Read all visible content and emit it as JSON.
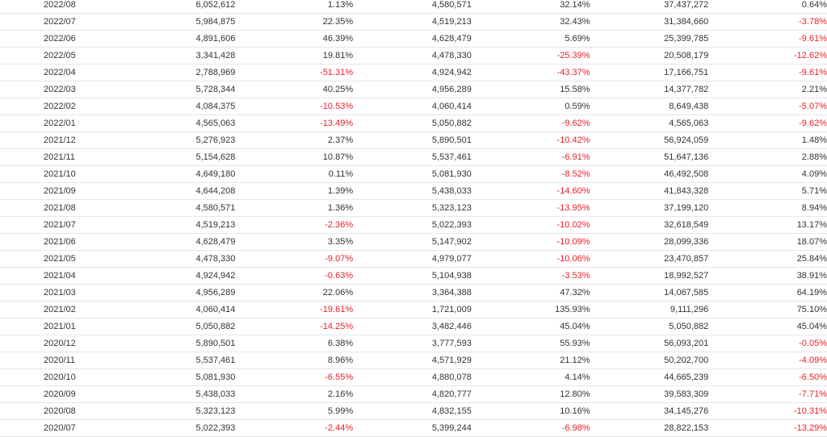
{
  "colors": {
    "negative": "#e8202a",
    "text": "#333333",
    "row_border": "#e6e6e6"
  },
  "rows": [
    {
      "month": "2022/08",
      "v1": "6,052,612",
      "p1": "1.13%",
      "v2": "4,580,571",
      "p2": "32.14%",
      "v3": "37,437,272",
      "p3": "0.64%"
    },
    {
      "month": "2022/07",
      "v1": "5,984,875",
      "p1": "22.35%",
      "v2": "4,519,213",
      "p2": "32.43%",
      "v3": "31,384,660",
      "p3": "-3.78%"
    },
    {
      "month": "2022/06",
      "v1": "4,891,606",
      "p1": "46.39%",
      "v2": "4,628,479",
      "p2": "5.69%",
      "v3": "25,399,785",
      "p3": "-9.61%"
    },
    {
      "month": "2022/05",
      "v1": "3,341,428",
      "p1": "19.81%",
      "v2": "4,478,330",
      "p2": "-25.39%",
      "v3": "20,508,179",
      "p3": "-12.62%"
    },
    {
      "month": "2022/04",
      "v1": "2,788,969",
      "p1": "-51.31%",
      "v2": "4,924,942",
      "p2": "-43.37%",
      "v3": "17,166,751",
      "p3": "-9.61%"
    },
    {
      "month": "2022/03",
      "v1": "5,728,344",
      "p1": "40.25%",
      "v2": "4,956,289",
      "p2": "15.58%",
      "v3": "14,377,782",
      "p3": "2.21%"
    },
    {
      "month": "2022/02",
      "v1": "4,084,375",
      "p1": "-10.53%",
      "v2": "4,060,414",
      "p2": "0.59%",
      "v3": "8,649,438",
      "p3": "-5.07%"
    },
    {
      "month": "2022/01",
      "v1": "4,565,063",
      "p1": "-13.49%",
      "v2": "5,050,882",
      "p2": "-9.62%",
      "v3": "4,565,063",
      "p3": "-9.62%"
    },
    {
      "month": "2021/12",
      "v1": "5,276,923",
      "p1": "2.37%",
      "v2": "5,890,501",
      "p2": "-10.42%",
      "v3": "56,924,059",
      "p3": "1.48%"
    },
    {
      "month": "2021/11",
      "v1": "5,154,628",
      "p1": "10.87%",
      "v2": "5,537,461",
      "p2": "-6.91%",
      "v3": "51,647,136",
      "p3": "2.88%"
    },
    {
      "month": "2021/10",
      "v1": "4,649,180",
      "p1": "0.11%",
      "v2": "5,081,930",
      "p2": "-8.52%",
      "v3": "46,492,508",
      "p3": "4.09%"
    },
    {
      "month": "2021/09",
      "v1": "4,644,208",
      "p1": "1.39%",
      "v2": "5,438,033",
      "p2": "-14.60%",
      "v3": "41,843,328",
      "p3": "5.71%"
    },
    {
      "month": "2021/08",
      "v1": "4,580,571",
      "p1": "1.36%",
      "v2": "5,323,123",
      "p2": "-13.95%",
      "v3": "37,199,120",
      "p3": "8.94%"
    },
    {
      "month": "2021/07",
      "v1": "4,519,213",
      "p1": "-2.36%",
      "v2": "5,022,393",
      "p2": "-10.02%",
      "v3": "32,618,549",
      "p3": "13.17%"
    },
    {
      "month": "2021/06",
      "v1": "4,628,479",
      "p1": "3.35%",
      "v2": "5,147,902",
      "p2": "-10.09%",
      "v3": "28,099,336",
      "p3": "18.07%"
    },
    {
      "month": "2021/05",
      "v1": "4,478,330",
      "p1": "-9.07%",
      "v2": "4,979,077",
      "p2": "-10.06%",
      "v3": "23,470,857",
      "p3": "25.84%"
    },
    {
      "month": "2021/04",
      "v1": "4,924,942",
      "p1": "-0.63%",
      "v2": "5,104,938",
      "p2": "-3.53%",
      "v3": "18,992,527",
      "p3": "38.91%"
    },
    {
      "month": "2021/03",
      "v1": "4,956,289",
      "p1": "22.06%",
      "v2": "3,364,388",
      "p2": "47.32%",
      "v3": "14,067,585",
      "p3": "64.19%"
    },
    {
      "month": "2021/02",
      "v1": "4,060,414",
      "p1": "-19.61%",
      "v2": "1,721,009",
      "p2": "135.93%",
      "v3": "9,111,296",
      "p3": "75.10%"
    },
    {
      "month": "2021/01",
      "v1": "5,050,882",
      "p1": "-14.25%",
      "v2": "3,482,446",
      "p2": "45.04%",
      "v3": "5,050,882",
      "p3": "45.04%"
    },
    {
      "month": "2020/12",
      "v1": "5,890,501",
      "p1": "6.38%",
      "v2": "3,777,593",
      "p2": "55.93%",
      "v3": "56,093,201",
      "p3": "-0.05%"
    },
    {
      "month": "2020/11",
      "v1": "5,537,461",
      "p1": "8.96%",
      "v2": "4,571,929",
      "p2": "21.12%",
      "v3": "50,202,700",
      "p3": "-4.09%"
    },
    {
      "month": "2020/10",
      "v1": "5,081,930",
      "p1": "-6.55%",
      "v2": "4,880,078",
      "p2": "4.14%",
      "v3": "44,665,239",
      "p3": "-6.50%"
    },
    {
      "month": "2020/09",
      "v1": "5,438,033",
      "p1": "2.16%",
      "v2": "4,820,777",
      "p2": "12.80%",
      "v3": "39,583,309",
      "p3": "-7.71%"
    },
    {
      "month": "2020/08",
      "v1": "5,323,123",
      "p1": "5.99%",
      "v2": "4,832,155",
      "p2": "10.16%",
      "v3": "34,145,276",
      "p3": "-10.31%"
    },
    {
      "month": "2020/07",
      "v1": "5,022,393",
      "p1": "-2.44%",
      "v2": "5,399,244",
      "p2": "-6.98%",
      "v3": "28,822,153",
      "p3": "-13.29%"
    }
  ]
}
